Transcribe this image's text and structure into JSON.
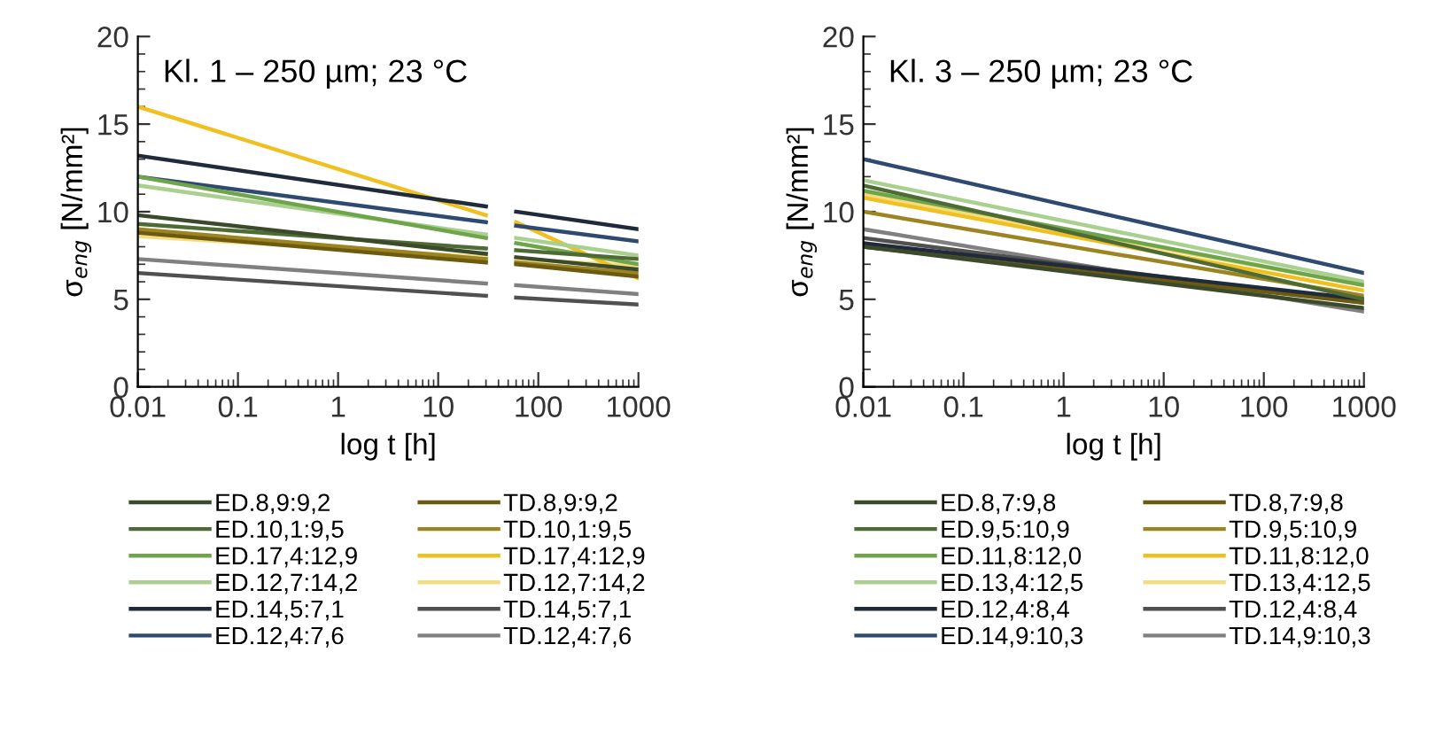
{
  "chart_data": [
    {
      "type": "line",
      "title": "Kl. 1 – 250 µm; 23 °C",
      "xlabel": "log t [h]",
      "ylabel": "σ$_{eng}$ [N/mm²]",
      "log": "x",
      "xlim": [
        0.01,
        1000
      ],
      "xticks": [
        0.01,
        0.1,
        1,
        10,
        100,
        1000
      ],
      "ylim": [
        0,
        20
      ],
      "yticks": [
        0,
        5,
        10,
        15,
        20
      ],
      "grid": false,
      "legend": "bottom",
      "marker": "none",
      "line_style": "solid",
      "x": [
        0.01,
        30,
        45,
        60,
        1000
      ],
      "series": [
        {
          "name": "ED.8,9:9,2",
          "color": "#3a4a2a",
          "values": [
            9.8,
            7.6,
            null,
            7.4,
            6.7
          ]
        },
        {
          "name": "ED.10,1:9,5",
          "color": "#4e6b36",
          "values": [
            9.3,
            7.9,
            null,
            7.8,
            7.3
          ]
        },
        {
          "name": "ED.17,4:12,9",
          "color": "#6fa54a",
          "values": [
            12.0,
            8.5,
            null,
            8.2,
            7.0
          ]
        },
        {
          "name": "ED.12,7:14,2",
          "color": "#a9d08e",
          "values": [
            11.5,
            8.7,
            null,
            8.5,
            7.5
          ]
        },
        {
          "name": "ED.14,5:7,1",
          "color": "#1f2a3a",
          "values": [
            13.2,
            10.3,
            null,
            10.0,
            9.0
          ]
        },
        {
          "name": "ED.12,4:7,6",
          "color": "#2e4a70",
          "values": [
            12.0,
            9.4,
            null,
            9.2,
            8.3
          ]
        },
        {
          "name": "TD.8,9:9,2",
          "color": "#6b5a10",
          "values": [
            8.8,
            7.1,
            null,
            7.0,
            6.3
          ]
        },
        {
          "name": "TD.10,1:9,5",
          "color": "#9c8420",
          "values": [
            9.0,
            7.3,
            null,
            7.1,
            6.5
          ]
        },
        {
          "name": "TD.17,4:12,9",
          "color": "#f0c020",
          "values": [
            16.0,
            9.8,
            null,
            9.4,
            6.2
          ]
        },
        {
          "name": "TD.12,7:14,2",
          "color": "#f5dc80",
          "values": [
            8.6,
            7.4,
            null,
            7.3,
            6.9
          ]
        },
        {
          "name": "TD.14,5:7,1",
          "color": "#505050",
          "values": [
            6.5,
            5.2,
            null,
            5.1,
            4.7
          ]
        },
        {
          "name": "TD.12,4:7,6",
          "color": "#808080",
          "values": [
            7.3,
            5.9,
            null,
            5.8,
            5.3
          ]
        }
      ]
    },
    {
      "type": "line",
      "title": "Kl. 3 – 250 µm; 23 °C",
      "xlabel": "log t [h]",
      "ylabel": "σ$_{eng}$ [N/mm²]",
      "log": "x",
      "xlim": [
        0.01,
        1000
      ],
      "xticks": [
        0.01,
        0.1,
        1,
        10,
        100,
        1000
      ],
      "ylim": [
        0,
        20
      ],
      "yticks": [
        0,
        5,
        10,
        15,
        20
      ],
      "grid": false,
      "legend": "bottom",
      "marker": "none",
      "line_style": "solid",
      "x": [
        0.01,
        1000
      ],
      "series": [
        {
          "name": "ED.8,7:9,8",
          "color": "#3a4a2a",
          "values": [
            8.0,
            4.5
          ]
        },
        {
          "name": "ED.9,5:10,9",
          "color": "#4e6b36",
          "values": [
            11.5,
            5.0
          ]
        },
        {
          "name": "ED.11,8:12,0",
          "color": "#6fa54a",
          "values": [
            11.2,
            5.8
          ]
        },
        {
          "name": "ED.13,4:12,5",
          "color": "#a9d08e",
          "values": [
            11.8,
            6.0
          ]
        },
        {
          "name": "ED.12,4:8,4",
          "color": "#1f2a3a",
          "values": [
            8.2,
            5.0
          ]
        },
        {
          "name": "ED.14,9:10,3",
          "color": "#2e4a70",
          "values": [
            13.0,
            6.5
          ]
        },
        {
          "name": "TD.8,7:9,8",
          "color": "#6b5a10",
          "values": [
            8.0,
            4.8
          ]
        },
        {
          "name": "TD.9,5:10,9",
          "color": "#9c8420",
          "values": [
            10.0,
            5.2
          ]
        },
        {
          "name": "TD.11,8:12,0",
          "color": "#f0c020",
          "values": [
            10.8,
            5.5
          ]
        },
        {
          "name": "TD.13,4:12,5",
          "color": "#f5dc80",
          "values": [
            11.0,
            5.8
          ]
        },
        {
          "name": "TD.12,4:8,4",
          "color": "#505050",
          "values": [
            8.5,
            4.8
          ]
        },
        {
          "name": "TD.14,9:10,3",
          "color": "#808080",
          "values": [
            9.0,
            4.3
          ]
        }
      ]
    }
  ]
}
